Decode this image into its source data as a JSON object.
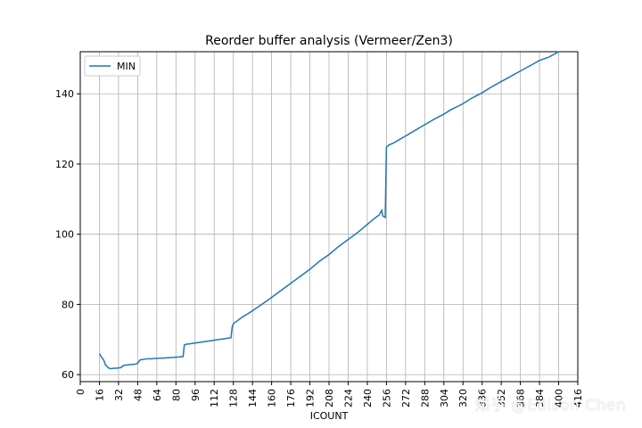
{
  "chart_data": {
    "type": "line",
    "title": "Reorder buffer analysis (Vermeer/Zen3)",
    "xlabel": "ICOUNT",
    "ylabel": "",
    "xlim": [
      0,
      416
    ],
    "ylim": [
      58,
      152
    ],
    "xticks": [
      0,
      16,
      32,
      48,
      64,
      80,
      96,
      112,
      128,
      144,
      160,
      176,
      192,
      208,
      224,
      240,
      256,
      272,
      288,
      304,
      320,
      336,
      352,
      368,
      384,
      400,
      416
    ],
    "yticks": [
      60,
      80,
      100,
      120,
      140
    ],
    "grid": true,
    "legend_position": "top-left",
    "color": "#1f77b4",
    "series": [
      {
        "name": "MIN",
        "x": [
          16,
          17,
          18,
          19,
          20,
          21,
          22,
          24,
          26,
          28,
          30,
          32,
          34,
          36,
          38,
          40,
          42,
          44,
          46,
          48,
          50,
          52,
          54,
          56,
          58,
          60,
          62,
          64,
          66,
          68,
          70,
          72,
          74,
          76,
          78,
          80,
          82,
          84,
          86,
          87,
          88,
          90,
          92,
          94,
          96,
          100,
          104,
          108,
          112,
          116,
          120,
          124,
          126,
          127,
          128,
          132,
          136,
          140,
          144,
          150,
          156,
          160,
          168,
          176,
          184,
          192,
          200,
          208,
          216,
          224,
          232,
          240,
          246,
          250,
          252,
          253,
          254,
          255,
          256,
          258,
          262,
          266,
          270,
          272,
          276,
          280,
          284,
          288,
          292,
          296,
          300,
          304,
          310,
          316,
          320,
          326,
          332,
          336,
          344,
          352,
          360,
          368,
          376,
          384,
          392,
          400
        ],
        "values": [
          66,
          65.5,
          64.8,
          64.5,
          63.8,
          62.8,
          62.5,
          61.8,
          61.7,
          61.8,
          61.8,
          61.9,
          62,
          62.6,
          62.7,
          62.8,
          62.9,
          62.9,
          63,
          63.2,
          64.2,
          64.3,
          64.4,
          64.5,
          64.5,
          64.5,
          64.6,
          64.6,
          64.7,
          64.7,
          64.7,
          64.8,
          64.8,
          64.9,
          64.9,
          65,
          65,
          65.1,
          65.1,
          68.4,
          68.6,
          68.7,
          68.8,
          68.9,
          69,
          69.2,
          69.4,
          69.6,
          69.8,
          70,
          70.2,
          70.4,
          70.5,
          73.5,
          74.5,
          75.5,
          76.5,
          77.3,
          78.2,
          79.6,
          81,
          82,
          84,
          86,
          88,
          90,
          92.3,
          94.2,
          96.5,
          98.5,
          100.5,
          102.8,
          104.5,
          105.5,
          106.8,
          105.2,
          105,
          104.8,
          124.8,
          125.4,
          126,
          126.8,
          127.6,
          128,
          128.8,
          129.6,
          130.4,
          131.2,
          132,
          132.8,
          133.5,
          134.2,
          135.5,
          136.5,
          137.2,
          138.5,
          139.6,
          140.3,
          142,
          143.5,
          145,
          146.5,
          148,
          149.5,
          150.5,
          152
        ]
      }
    ]
  },
  "watermark": "知乎 @Edison Chen"
}
